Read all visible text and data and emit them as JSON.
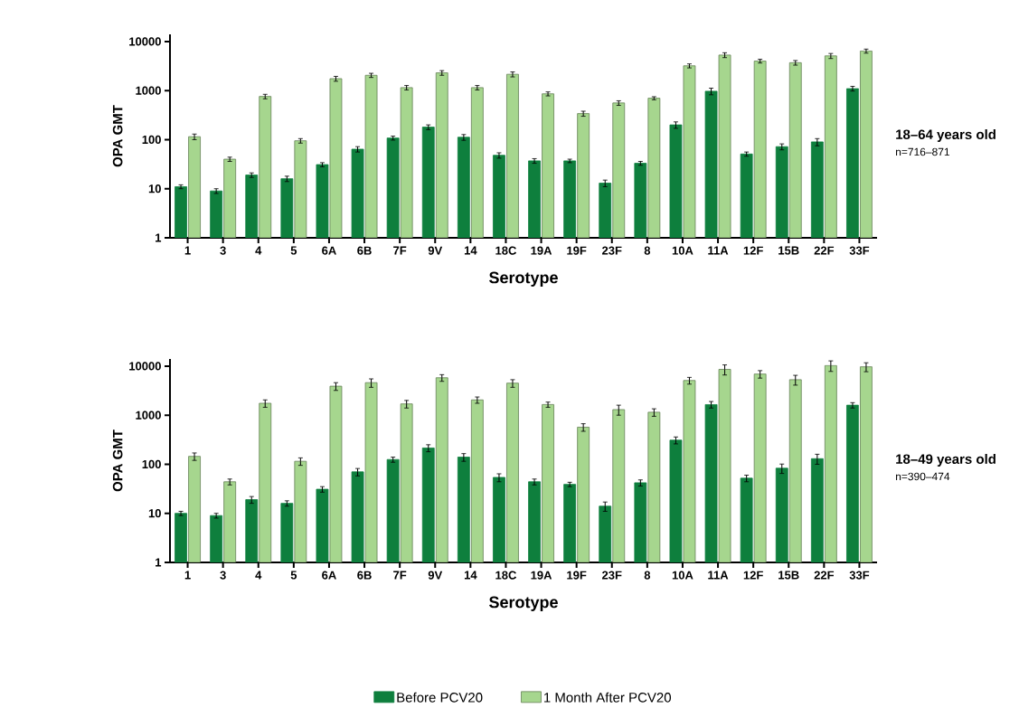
{
  "chart_data": [
    {
      "type": "bar",
      "xlabel": "Serotype",
      "ylabel": "OPA GMT",
      "log": "y",
      "ylim": [
        1,
        14000
      ],
      "yticks": [
        1,
        10,
        100,
        1000,
        10000
      ],
      "categories": [
        "1",
        "3",
        "4",
        "5",
        "6A",
        "6B",
        "7F",
        "9V",
        "14",
        "18C",
        "19A",
        "19F",
        "23F",
        "8",
        "10A",
        "11A",
        "12F",
        "15B",
        "22F",
        "33F"
      ],
      "series": [
        {
          "color": "#0e7f3d",
          "values": [
            11,
            9,
            19,
            16,
            31,
            64,
            108,
            180,
            112,
            48,
            37,
            37,
            13,
            33,
            200,
            970,
            51,
            72,
            90,
            1100
          ],
          "errors": [
            1,
            1,
            2,
            2,
            3,
            8,
            10,
            20,
            15,
            6,
            4,
            3,
            2,
            3,
            30,
            150,
            5,
            10,
            15,
            120
          ]
        },
        {
          "color": "#a6d68e",
          "values": [
            115,
            40,
            760,
            95,
            1750,
            2050,
            1150,
            2300,
            1150,
            2150,
            860,
            340,
            560,
            700,
            3200,
            5300,
            4000,
            3700,
            5100,
            6400
          ],
          "errors": [
            15,
            4,
            80,
            10,
            200,
            200,
            120,
            250,
            120,
            250,
            80,
            40,
            60,
            50,
            300,
            600,
            350,
            400,
            600,
            600
          ]
        }
      ],
      "annotations": [
        "**18–64 years old**",
        "n=716–871"
      ]
    },
    {
      "type": "bar",
      "xlabel": "Serotype",
      "ylabel": "OPA GMT",
      "log": "y",
      "ylim": [
        1,
        14000
      ],
      "yticks": [
        1,
        10,
        100,
        1000,
        10000
      ],
      "legend": "bottom",
      "categories": [
        "1",
        "3",
        "4",
        "5",
        "6A",
        "6B",
        "7F",
        "9V",
        "14",
        "18C",
        "19A",
        "19F",
        "23F",
        "8",
        "10A",
        "11A",
        "12F",
        "15B",
        "22F",
        "33F"
      ],
      "series": [
        {
          "name": "Before PCV20",
          "color": "#0e7f3d",
          "values": [
            10,
            9,
            19,
            16,
            31,
            70,
            125,
            215,
            140,
            54,
            44,
            39,
            14,
            42,
            310,
            1650,
            52,
            83,
            130,
            1600
          ],
          "errors": [
            1,
            1,
            3,
            2,
            4,
            12,
            15,
            35,
            25,
            10,
            6,
            4,
            3,
            6,
            50,
            250,
            8,
            18,
            30,
            200
          ]
        },
        {
          "name": "1 Month After PCV20",
          "color": "#a6d68e",
          "values": [
            145,
            44,
            1750,
            115,
            3900,
            4600,
            1700,
            5800,
            2050,
            4500,
            1650,
            570,
            1300,
            1150,
            5100,
            8600,
            6900,
            5300,
            10300,
            9700
          ],
          "errors": [
            25,
            6,
            300,
            20,
            700,
            900,
            300,
            900,
            300,
            800,
            200,
            100,
            300,
            200,
            800,
            2000,
            1200,
            1200,
            2500,
            2000
          ]
        }
      ],
      "annotations": [
        "**18–49 years old**",
        "n=390–474"
      ]
    }
  ]
}
